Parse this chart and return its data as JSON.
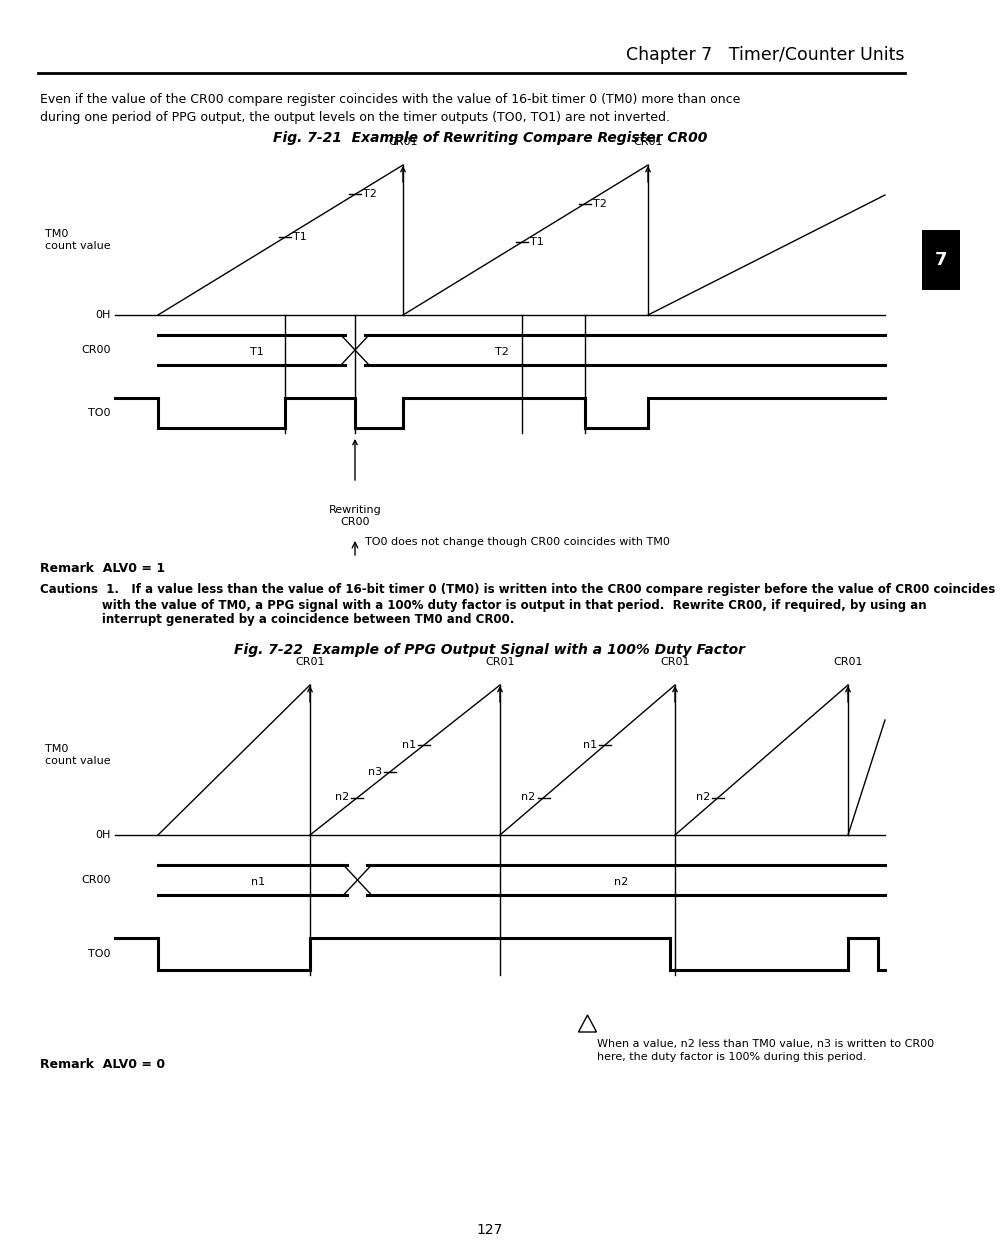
{
  "page_title": "Chapter 7   Timer/Counter Units",
  "page_number": "127",
  "tab_number": "7",
  "header_line1": "Even if the value of the CR00 compare register coincides with the value of 16-bit timer 0 (TM0) more than once",
  "header_line2": "during one period of PPG output, the output levels on the timer outputs (TO0, TO1) are not inverted.",
  "fig1_title": "Fig. 7-21  Example of Rewriting Compare Register CR00",
  "fig2_title": "Fig. 7-22  Example of PPG Output Signal with a 100% Duty Factor",
  "remark1": "Remark  ALV0 = 1",
  "caution_line1": "Cautions  1.   If a value less than the value of 16-bit timer 0 (TM0) is written into the CR00 compare register before the value of CR00 coincides",
  "caution_line2": "               with the value of TM0, a PPG signal with a 100% duty factor is output in that period.  Rewrite CR00, if required, by using an",
  "caution_line3": "               interrupt generated by a coincidence between TM0 and CR00.",
  "remark2": "Remark  ALV0 = 0",
  "fig1_annotation": "TO0 does not change though CR00 coincides with TM0",
  "fig2_annotation_line1": "When a value, n2 less than TM0 value, n3 is written to CR00",
  "fig2_annotation_line2": "here, the duty factor is 100% during this period.",
  "bg_color": "#ffffff"
}
